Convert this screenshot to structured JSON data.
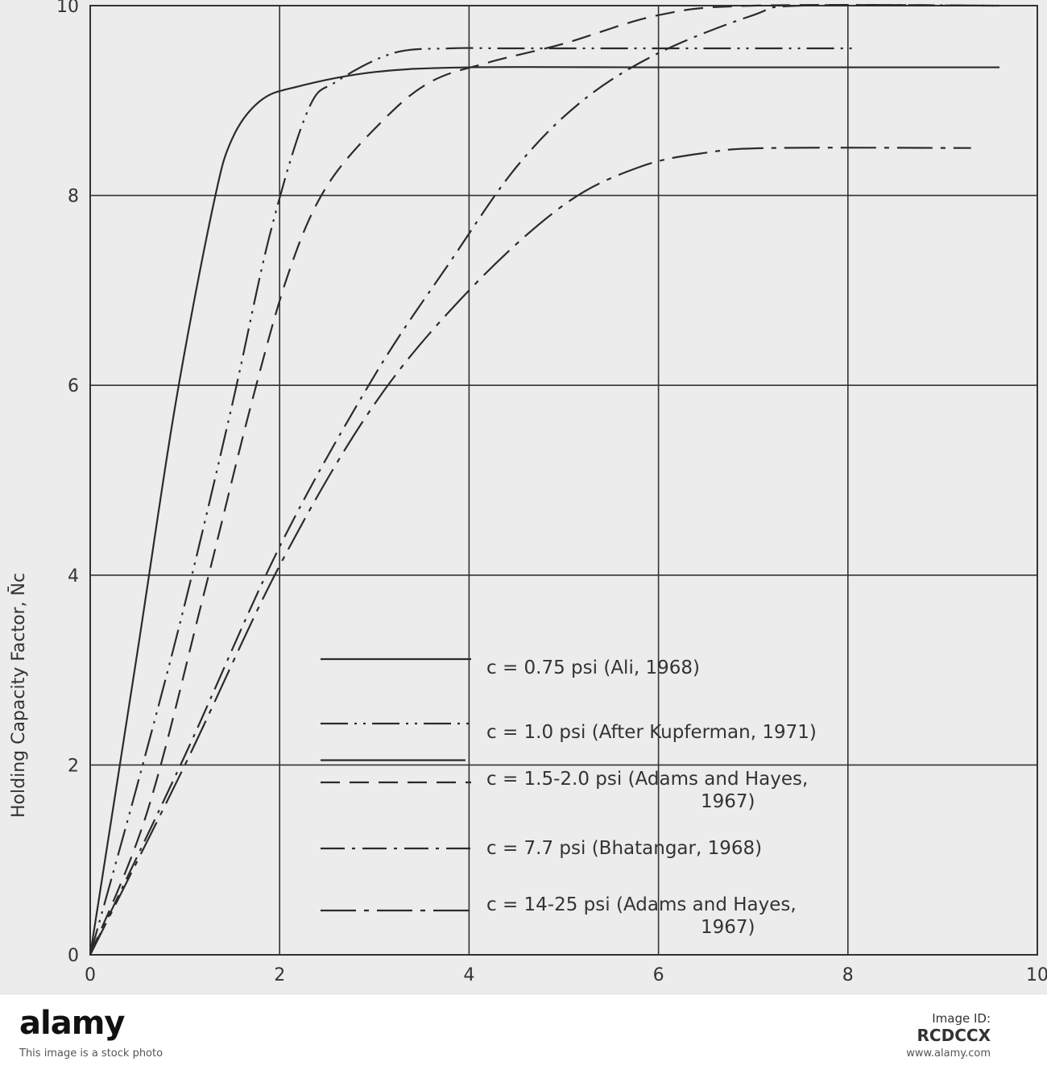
{
  "chart_data": {
    "type": "line",
    "title": "",
    "xlabel": "",
    "ylabel": "Holding Capacity Factor, N̄c",
    "xlim": [
      0,
      10
    ],
    "ylim": [
      0,
      10
    ],
    "x_ticks": [
      "0",
      "2",
      "4",
      "6",
      "8",
      "10"
    ],
    "y_ticks": [
      "0",
      "2",
      "4",
      "6",
      "8",
      "10"
    ],
    "grid": true,
    "legend_position": "bottom-right",
    "series": [
      {
        "name": "c = 0.75 psi (Ali, 1968)",
        "style": "solid",
        "points": [
          [
            0,
            0
          ],
          [
            0.5,
            3.2
          ],
          [
            0.9,
            5.8
          ],
          [
            1.3,
            7.9
          ],
          [
            1.5,
            8.6
          ],
          [
            1.8,
            9.0
          ],
          [
            2.2,
            9.15
          ],
          [
            3,
            9.3
          ],
          [
            4,
            9.35
          ],
          [
            6,
            9.35
          ],
          [
            8,
            9.35
          ],
          [
            9.6,
            9.35
          ]
        ]
      },
      {
        "name": "c = 1.0 psi (After Kupferman, 1971)",
        "style": "dash-dot-dot",
        "points": [
          [
            0,
            0
          ],
          [
            0.5,
            1.8
          ],
          [
            1,
            3.7
          ],
          [
            1.5,
            5.8
          ],
          [
            1.9,
            7.6
          ],
          [
            2.3,
            8.9
          ],
          [
            2.6,
            9.2
          ],
          [
            3.2,
            9.5
          ],
          [
            3.8,
            9.55
          ],
          [
            4.4,
            9.55
          ],
          [
            5.5,
            9.55
          ],
          [
            6.5,
            9.55
          ],
          [
            8.1,
            9.55
          ]
        ]
      },
      {
        "name": "c = 1.5-2.0 psi (Adams and Hayes, 1967)",
        "style": "dashed",
        "points": [
          [
            0,
            0
          ],
          [
            0.6,
            1.5
          ],
          [
            1.2,
            3.8
          ],
          [
            1.7,
            5.8
          ],
          [
            2.1,
            7.2
          ],
          [
            2.5,
            8.1
          ],
          [
            3.1,
            8.8
          ],
          [
            3.6,
            9.2
          ],
          [
            4.2,
            9.4
          ],
          [
            5,
            9.6
          ],
          [
            6,
            9.9
          ],
          [
            7,
            10.0
          ],
          [
            9.6,
            10.0
          ]
        ]
      },
      {
        "name": "c = 7.7 psi (Bhatangar, 1968)",
        "style": "dash-dot",
        "points": [
          [
            0,
            0
          ],
          [
            1,
            2.1
          ],
          [
            2,
            4.3
          ],
          [
            3,
            6.1
          ],
          [
            3.8,
            7.3
          ],
          [
            4.5,
            8.3
          ],
          [
            5.2,
            9.0
          ],
          [
            6,
            9.5
          ],
          [
            7,
            9.9
          ],
          [
            7.5,
            10.0
          ],
          [
            9.6,
            10.0
          ]
        ]
      },
      {
        "name": "c = 14-25 psi (Adams and Hayes, 1967)",
        "style": "long-dash-dot",
        "points": [
          [
            0,
            0
          ],
          [
            1,
            2.0
          ],
          [
            2,
            4.1
          ],
          [
            3,
            5.8
          ],
          [
            4,
            7.0
          ],
          [
            5,
            7.9
          ],
          [
            5.8,
            8.3
          ],
          [
            6.5,
            8.45
          ],
          [
            7.2,
            8.5
          ],
          [
            9.3,
            8.5
          ]
        ]
      }
    ]
  },
  "watermark": {
    "logo": "alamy",
    "image_id_label": "Image ID:",
    "image_id": "RCDCCX",
    "note": "This image is a stock photo",
    "site": "www.alamy.com"
  }
}
